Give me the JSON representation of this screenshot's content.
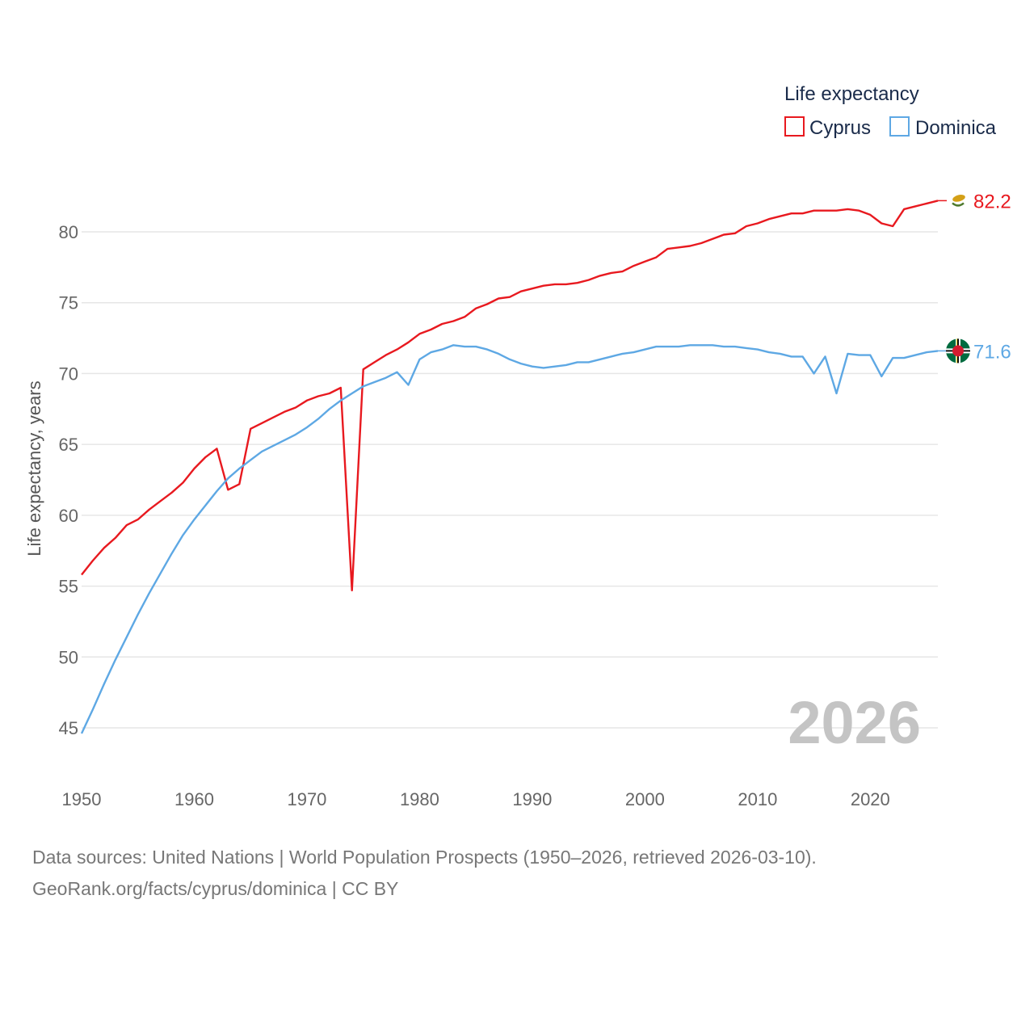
{
  "chart_data": {
    "type": "line",
    "legend_title": "Life expectancy",
    "ylabel": "Life expectancy, years",
    "xlabel": "",
    "xlim": [
      1950,
      2026
    ],
    "ylim": [
      45,
      80
    ],
    "x_ticks": [
      1950,
      1960,
      1970,
      1980,
      1990,
      2000,
      2010,
      2020
    ],
    "y_ticks": [
      45,
      50,
      55,
      60,
      65,
      70,
      75,
      80
    ],
    "current_year": "2026",
    "legend_position": "top-right",
    "x": [
      1950,
      1951,
      1952,
      1953,
      1954,
      1955,
      1956,
      1957,
      1958,
      1959,
      1960,
      1961,
      1962,
      1963,
      1964,
      1965,
      1966,
      1967,
      1968,
      1969,
      1970,
      1971,
      1972,
      1973,
      1974,
      1975,
      1976,
      1977,
      1978,
      1979,
      1980,
      1981,
      1982,
      1983,
      1984,
      1985,
      1986,
      1987,
      1988,
      1989,
      1990,
      1991,
      1992,
      1993,
      1994,
      1995,
      1996,
      1997,
      1998,
      1999,
      2000,
      2001,
      2002,
      2003,
      2004,
      2005,
      2006,
      2007,
      2008,
      2009,
      2010,
      2011,
      2012,
      2013,
      2014,
      2015,
      2016,
      2017,
      2018,
      2019,
      2020,
      2021,
      2022,
      2023,
      2024,
      2025,
      2026
    ],
    "series": [
      {
        "name": "Cyprus",
        "color": "#e8191f",
        "end_label": "82.2",
        "flag_icon": "cyprus-flag-icon",
        "values": [
          55.8,
          56.8,
          57.7,
          58.4,
          59.3,
          59.7,
          60.4,
          61.0,
          61.6,
          62.3,
          63.3,
          64.1,
          64.7,
          61.8,
          62.2,
          66.1,
          66.5,
          66.9,
          67.3,
          67.6,
          68.1,
          68.4,
          68.6,
          69.0,
          54.7,
          70.3,
          70.8,
          71.3,
          71.7,
          72.2,
          72.8,
          73.1,
          73.5,
          73.7,
          74.0,
          74.6,
          74.9,
          75.3,
          75.4,
          75.8,
          76.0,
          76.2,
          76.3,
          76.3,
          76.4,
          76.6,
          76.9,
          77.1,
          77.2,
          77.6,
          77.9,
          78.2,
          78.8,
          78.9,
          79.0,
          79.2,
          79.5,
          79.8,
          79.9,
          80.4,
          80.6,
          80.9,
          81.1,
          81.3,
          81.3,
          81.5,
          81.5,
          81.5,
          81.6,
          81.5,
          81.2,
          80.6,
          80.4,
          81.6,
          81.8,
          82.0,
          82.2
        ]
      },
      {
        "name": "Dominica",
        "color": "#5ea8e4",
        "end_label": "71.6",
        "flag_icon": "dominica-flag-icon",
        "values": [
          44.6,
          46.3,
          48.1,
          49.8,
          51.4,
          53.0,
          54.5,
          55.9,
          57.3,
          58.6,
          59.7,
          60.7,
          61.7,
          62.6,
          63.3,
          63.9,
          64.5,
          64.9,
          65.3,
          65.7,
          66.2,
          66.8,
          67.5,
          68.1,
          68.6,
          69.1,
          69.4,
          69.7,
          70.1,
          69.2,
          71.0,
          71.5,
          71.7,
          72.0,
          71.9,
          71.9,
          71.7,
          71.4,
          71.0,
          70.7,
          70.5,
          70.4,
          70.5,
          70.6,
          70.8,
          70.8,
          71.0,
          71.2,
          71.4,
          71.5,
          71.7,
          71.9,
          71.9,
          71.9,
          72.0,
          72.0,
          72.0,
          71.9,
          71.9,
          71.8,
          71.7,
          71.5,
          71.4,
          71.2,
          71.2,
          70.0,
          71.2,
          68.6,
          71.4,
          71.3,
          71.3,
          69.8,
          71.1,
          71.1,
          71.3,
          71.5,
          71.6
        ]
      }
    ]
  },
  "source": {
    "line1": "Data sources: United Nations | World Population Prospects (1950–2026, retrieved 2026-03-10).",
    "line2": "GeoRank.org/facts/cyprus/dominica | CC BY"
  },
  "colors": {
    "grid": "#e6e6e6",
    "flag_cyprus_map": "#d4a017",
    "flag_cyprus_leaves": "#4e7a2e",
    "flag_dominica_green": "#006b3f",
    "flag_dominica_red": "#d41c30",
    "flag_dominica_yellow": "#fcd116"
  }
}
